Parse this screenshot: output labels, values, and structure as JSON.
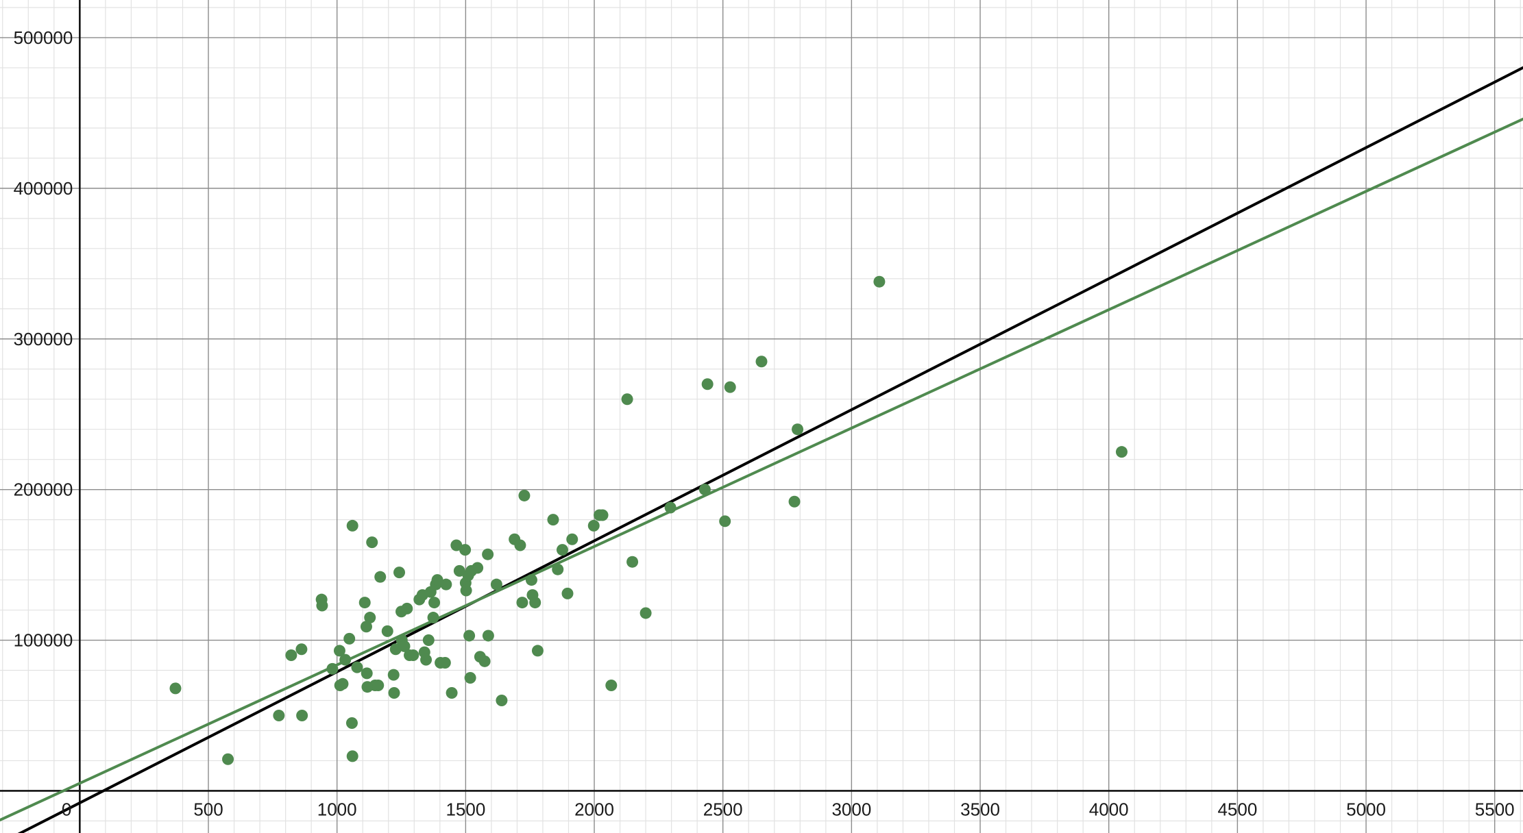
{
  "chart_data": {
    "type": "scatter",
    "title": "",
    "xlabel": "",
    "ylabel": "",
    "xlim": [
      -310,
      5610
    ],
    "ylim": [
      -28000,
      525000
    ],
    "grid": true,
    "x_ticks": [
      {
        "value": 0,
        "label": "0"
      },
      {
        "value": 500,
        "label": "500"
      },
      {
        "value": 1000,
        "label": "1000"
      },
      {
        "value": 1500,
        "label": "1500"
      },
      {
        "value": 2000,
        "label": "2000"
      },
      {
        "value": 2500,
        "label": "2500"
      },
      {
        "value": 3000,
        "label": "3000"
      },
      {
        "value": 3500,
        "label": "3500"
      },
      {
        "value": 4000,
        "label": "4000"
      },
      {
        "value": 4500,
        "label": "4500"
      },
      {
        "value": 5000,
        "label": "5000"
      },
      {
        "value": 5500,
        "label": "5500"
      }
    ],
    "y_ticks": [
      {
        "value": 100000,
        "label": "100000"
      },
      {
        "value": 200000,
        "label": "200000"
      },
      {
        "value": 300000,
        "label": "300000"
      },
      {
        "value": 400000,
        "label": "400000"
      },
      {
        "value": 500000,
        "label": "500000"
      }
    ],
    "points_color": "#4f8a4f",
    "points": [
      [
        372,
        68000
      ],
      [
        576,
        21000
      ],
      [
        774,
        50000
      ],
      [
        822,
        90000
      ],
      [
        862,
        94000
      ],
      [
        864,
        50000
      ],
      [
        940,
        127000
      ],
      [
        942,
        123000
      ],
      [
        982,
        81000
      ],
      [
        1010,
        93000
      ],
      [
        1012,
        70000
      ],
      [
        1022,
        71000
      ],
      [
        1032,
        87000
      ],
      [
        1048,
        101000
      ],
      [
        1058,
        45000
      ],
      [
        1060,
        176000
      ],
      [
        1060,
        23000
      ],
      [
        1078,
        82000
      ],
      [
        1108,
        125000
      ],
      [
        1114,
        109000
      ],
      [
        1116,
        78000
      ],
      [
        1118,
        69000
      ],
      [
        1128,
        115000
      ],
      [
        1136,
        165000
      ],
      [
        1148,
        70000
      ],
      [
        1160,
        70000
      ],
      [
        1168,
        142000
      ],
      [
        1196,
        106000
      ],
      [
        1220,
        77000
      ],
      [
        1222,
        65000
      ],
      [
        1228,
        94000
      ],
      [
        1242,
        145000
      ],
      [
        1250,
        119000
      ],
      [
        1252,
        100000
      ],
      [
        1262,
        96000
      ],
      [
        1272,
        121000
      ],
      [
        1282,
        90000
      ],
      [
        1296,
        90000
      ],
      [
        1320,
        127000
      ],
      [
        1332,
        130000
      ],
      [
        1340,
        92000
      ],
      [
        1346,
        87000
      ],
      [
        1356,
        100000
      ],
      [
        1364,
        132000
      ],
      [
        1374,
        115000
      ],
      [
        1378,
        125000
      ],
      [
        1384,
        137000
      ],
      [
        1390,
        140000
      ],
      [
        1402,
        85000
      ],
      [
        1420,
        85000
      ],
      [
        1424,
        137000
      ],
      [
        1446,
        65000
      ],
      [
        1464,
        163000
      ],
      [
        1476,
        146000
      ],
      [
        1498,
        160000
      ],
      [
        1500,
        138000
      ],
      [
        1502,
        133000
      ],
      [
        1510,
        143000
      ],
      [
        1514,
        103000
      ],
      [
        1518,
        75000
      ],
      [
        1522,
        146000
      ],
      [
        1546,
        148000
      ],
      [
        1556,
        89000
      ],
      [
        1574,
        86000
      ],
      [
        1586,
        157000
      ],
      [
        1588,
        103000
      ],
      [
        1620,
        137000
      ],
      [
        1640,
        60000
      ],
      [
        1690,
        167000
      ],
      [
        1712,
        163000
      ],
      [
        1720,
        125000
      ],
      [
        1728,
        196000
      ],
      [
        1756,
        140000
      ],
      [
        1760,
        130000
      ],
      [
        1770,
        125000
      ],
      [
        1780,
        93000
      ],
      [
        1840,
        180000
      ],
      [
        1858,
        147000
      ],
      [
        1876,
        160000
      ],
      [
        1896,
        131000
      ],
      [
        1914,
        167000
      ],
      [
        1998,
        176000
      ],
      [
        2020,
        183000
      ],
      [
        2032,
        183000
      ],
      [
        2066,
        70000
      ],
      [
        2128,
        260000
      ],
      [
        2148,
        152000
      ],
      [
        2200,
        118000
      ],
      [
        2296,
        188000
      ],
      [
        2430,
        200000
      ],
      [
        2440,
        270000
      ],
      [
        2508,
        179000
      ],
      [
        2528,
        268000
      ],
      [
        2650,
        285000
      ],
      [
        2778,
        192000
      ],
      [
        2790,
        240000
      ],
      [
        3108,
        338000
      ],
      [
        4050,
        225000
      ]
    ],
    "lines": [
      {
        "color": "#000000",
        "slope": 87.0,
        "intercept": -8000
      },
      {
        "color": "#4f8a4f",
        "slope": 78.6,
        "intercept": 5000
      }
    ]
  }
}
